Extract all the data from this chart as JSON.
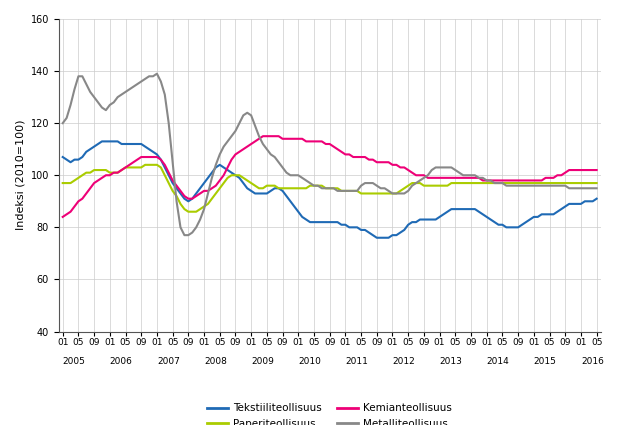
{
  "ylabel": "Indeksi (2010=100)",
  "ylim": [
    40,
    160
  ],
  "yticks": [
    40,
    60,
    80,
    100,
    120,
    140,
    160
  ],
  "colors": {
    "Tekstiiliteollisuus": "#1f6ab5",
    "Paperiteollisuus": "#aacc00",
    "Kemianteollisuus": "#ee0077",
    "Metalliteollisuus": "#888888"
  },
  "legend_order": [
    "Tekstiiliteollisuus",
    "Paperiteollisuus",
    "Kemianteollisuus",
    "Metalliteollisuus"
  ],
  "series": {
    "Tekstiiliteollisuus": [
      107,
      106,
      105,
      106,
      106,
      107,
      109,
      110,
      111,
      112,
      113,
      113,
      113,
      113,
      113,
      112,
      112,
      112,
      112,
      112,
      112,
      111,
      110,
      109,
      108,
      106,
      103,
      100,
      97,
      95,
      93,
      91,
      90,
      91,
      93,
      95,
      97,
      99,
      101,
      103,
      104,
      103,
      102,
      101,
      100,
      99,
      97,
      95,
      94,
      93,
      93,
      93,
      93,
      94,
      95,
      95,
      94,
      92,
      90,
      88,
      86,
      84,
      83,
      82,
      82,
      82,
      82,
      82,
      82,
      82,
      82,
      81,
      81,
      80,
      80,
      80,
      79,
      79,
      78,
      77,
      76,
      76,
      76,
      76,
      77,
      77,
      78,
      79,
      81,
      82,
      82,
      83,
      83,
      83,
      83,
      83,
      84,
      85,
      86,
      87,
      87,
      87,
      87,
      87,
      87,
      87,
      86,
      85,
      84,
      83,
      82,
      81,
      81,
      80,
      80,
      80,
      80,
      81,
      82,
      83,
      84,
      84,
      85,
      85,
      85,
      85,
      86,
      87,
      88,
      89,
      89,
      89,
      89,
      90,
      90,
      90,
      91
    ],
    "Paperiteollisuus": [
      97,
      97,
      97,
      98,
      99,
      100,
      101,
      101,
      102,
      102,
      102,
      102,
      101,
      101,
      101,
      102,
      103,
      103,
      103,
      103,
      103,
      104,
      104,
      104,
      104,
      103,
      100,
      97,
      94,
      92,
      89,
      87,
      86,
      86,
      86,
      87,
      88,
      89,
      91,
      93,
      95,
      97,
      99,
      100,
      100,
      100,
      99,
      98,
      97,
      96,
      95,
      95,
      96,
      96,
      96,
      95,
      95,
      95,
      95,
      95,
      95,
      95,
      95,
      96,
      96,
      96,
      96,
      95,
      95,
      95,
      95,
      94,
      94,
      94,
      94,
      94,
      93,
      93,
      93,
      93,
      93,
      93,
      93,
      93,
      93,
      93,
      94,
      95,
      96,
      97,
      97,
      97,
      96,
      96,
      96,
      96,
      96,
      96,
      96,
      97,
      97,
      97,
      97,
      97,
      97,
      97,
      97,
      97,
      97,
      97,
      97,
      97,
      97,
      97,
      97,
      97,
      97,
      97,
      97,
      97,
      97,
      97,
      97,
      97,
      97,
      97,
      97,
      97,
      97,
      97,
      97,
      97,
      97,
      97,
      97,
      97,
      97
    ],
    "Kemianteollisuus": [
      84,
      85,
      86,
      88,
      90,
      91,
      93,
      95,
      97,
      98,
      99,
      100,
      100,
      101,
      101,
      102,
      103,
      104,
      105,
      106,
      107,
      107,
      107,
      107,
      107,
      106,
      104,
      101,
      98,
      96,
      94,
      92,
      91,
      91,
      92,
      93,
      94,
      94,
      95,
      96,
      98,
      100,
      103,
      106,
      108,
      109,
      110,
      111,
      112,
      113,
      114,
      115,
      115,
      115,
      115,
      115,
      114,
      114,
      114,
      114,
      114,
      114,
      113,
      113,
      113,
      113,
      113,
      112,
      112,
      111,
      110,
      109,
      108,
      108,
      107,
      107,
      107,
      107,
      106,
      106,
      105,
      105,
      105,
      105,
      104,
      104,
      103,
      103,
      102,
      101,
      100,
      100,
      100,
      99,
      99,
      99,
      99,
      99,
      99,
      99,
      99,
      99,
      99,
      99,
      99,
      99,
      99,
      98,
      98,
      98,
      98,
      98,
      98,
      98,
      98,
      98,
      98,
      98,
      98,
      98,
      98,
      98,
      98,
      99,
      99,
      99,
      100,
      100,
      101,
      102,
      102,
      102,
      102,
      102,
      102,
      102,
      102
    ],
    "Metalliteollisuus": [
      120,
      122,
      127,
      133,
      138,
      138,
      135,
      132,
      130,
      128,
      126,
      125,
      127,
      128,
      130,
      131,
      132,
      133,
      134,
      135,
      136,
      137,
      138,
      138,
      139,
      136,
      131,
      120,
      105,
      90,
      80,
      77,
      77,
      78,
      80,
      83,
      87,
      93,
      99,
      104,
      108,
      111,
      113,
      115,
      117,
      120,
      123,
      124,
      123,
      119,
      115,
      112,
      110,
      108,
      107,
      105,
      103,
      101,
      100,
      100,
      100,
      99,
      98,
      97,
      96,
      96,
      95,
      95,
      95,
      95,
      94,
      94,
      94,
      94,
      94,
      94,
      96,
      97,
      97,
      97,
      96,
      95,
      95,
      94,
      93,
      93,
      93,
      93,
      94,
      96,
      97,
      98,
      99,
      100,
      102,
      103,
      103,
      103,
      103,
      103,
      102,
      101,
      100,
      100,
      100,
      100,
      99,
      99,
      98,
      98,
      97,
      97,
      97,
      96,
      96,
      96,
      96,
      96,
      96,
      96,
      96,
      96,
      96,
      96,
      96,
      96,
      96,
      96,
      96,
      95,
      95,
      95,
      95,
      95,
      95,
      95,
      95
    ]
  },
  "n_points": 137,
  "year_starts": [
    0,
    12,
    24,
    36,
    48,
    60,
    72,
    84,
    96,
    108,
    120,
    132
  ],
  "year_labels": [
    "2005",
    "2006",
    "2007",
    "2008",
    "2009",
    "2010",
    "2011",
    "2012",
    "2013",
    "2014",
    "2015",
    "2016"
  ],
  "background_color": "#ffffff",
  "grid_color": "#cccccc"
}
